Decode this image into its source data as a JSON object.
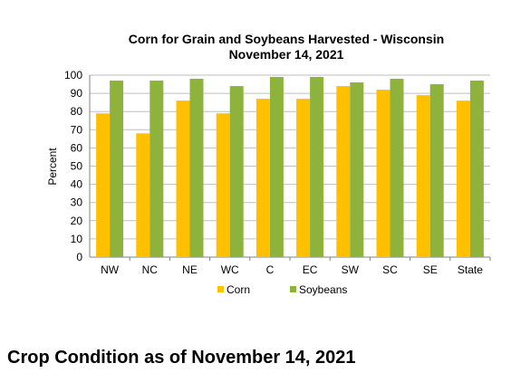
{
  "chart_data": {
    "type": "bar",
    "title": [
      "Corn for Grain and Soybeans Harvested - Wisconsin",
      "November 14, 2021"
    ],
    "xlabel": "",
    "ylabel": "Percent",
    "ylim": [
      0,
      100
    ],
    "yticks": [
      0,
      10,
      20,
      30,
      40,
      50,
      60,
      70,
      80,
      90,
      100
    ],
    "categories": [
      "NW",
      "NC",
      "NE",
      "WC",
      "C",
      "EC",
      "SW",
      "SC",
      "SE",
      "State"
    ],
    "series": [
      {
        "name": "Corn",
        "color": "#FFC000",
        "values": [
          79,
          68,
          86,
          79,
          87,
          87,
          94,
          92,
          89,
          86
        ]
      },
      {
        "name": "Soybeans",
        "color": "#8DB33C",
        "values": [
          97,
          97,
          98,
          94,
          99,
          99,
          96,
          98,
          95,
          97
        ]
      }
    ],
    "grid": true,
    "legend": "bottom"
  },
  "footer": {
    "heading": "Crop Condition as of November 14, 2021"
  }
}
